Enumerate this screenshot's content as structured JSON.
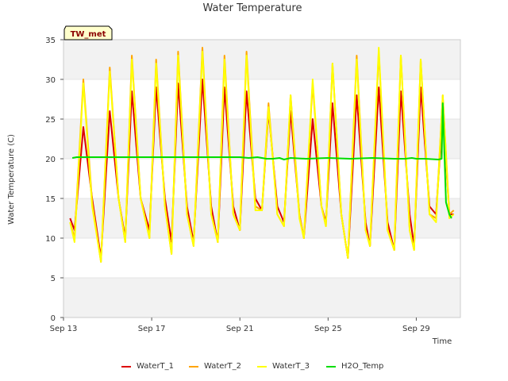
{
  "chart_data": {
    "type": "line",
    "title": "Water Temperature",
    "xlabel": "Time",
    "ylabel": "Water Temperature (C)",
    "station_badge": "TW_met",
    "x_unit": "date (Sep 13 to Sep 30, daily samples)",
    "x_ticks": [
      "Sep 13",
      "Sep 17",
      "Sep 21",
      "Sep 25",
      "Sep 29"
    ],
    "x_tick_values": [
      13,
      17,
      21,
      25,
      29
    ],
    "xlim": [
      13,
      31
    ],
    "y_ticks": [
      0,
      5,
      10,
      15,
      20,
      25,
      30,
      35
    ],
    "ylim": [
      0,
      35
    ],
    "grid": "horizontal bands",
    "legend_position": "bottom",
    "series": [
      {
        "name": "WaterT_1",
        "color": "#dd0000",
        "points": [
          [
            13.3,
            12.5
          ],
          [
            13.5,
            11
          ],
          [
            13.9,
            24
          ],
          [
            14.3,
            15
          ],
          [
            14.7,
            7.5
          ],
          [
            15.1,
            26
          ],
          [
            15.5,
            15
          ],
          [
            15.8,
            10
          ],
          [
            16.1,
            28.5
          ],
          [
            16.5,
            15
          ],
          [
            16.9,
            11
          ],
          [
            17.2,
            29
          ],
          [
            17.6,
            15
          ],
          [
            17.9,
            9.5
          ],
          [
            18.2,
            29.5
          ],
          [
            18.6,
            14
          ],
          [
            18.9,
            9.5
          ],
          [
            19.3,
            30
          ],
          [
            19.7,
            14
          ],
          [
            20.0,
            9.5
          ],
          [
            20.3,
            29
          ],
          [
            20.7,
            14
          ],
          [
            21.0,
            11
          ],
          [
            21.3,
            28.5
          ],
          [
            21.7,
            15
          ],
          [
            22.0,
            13.5
          ],
          [
            22.3,
            26
          ],
          [
            22.7,
            14
          ],
          [
            23.0,
            12
          ],
          [
            23.3,
            26
          ],
          [
            23.7,
            13
          ],
          [
            23.9,
            10
          ],
          [
            24.3,
            25
          ],
          [
            24.7,
            14
          ],
          [
            24.9,
            12
          ],
          [
            25.2,
            27
          ],
          [
            25.6,
            13
          ],
          [
            25.9,
            7.5
          ],
          [
            26.3,
            28
          ],
          [
            26.7,
            12
          ],
          [
            26.9,
            9
          ],
          [
            27.3,
            29
          ],
          [
            27.7,
            12
          ],
          [
            28.0,
            8.5
          ],
          [
            28.3,
            28.5
          ],
          [
            28.7,
            13
          ],
          [
            28.9,
            9
          ],
          [
            29.2,
            29
          ],
          [
            29.6,
            14
          ],
          [
            29.9,
            13
          ],
          [
            30.2,
            26
          ],
          [
            30.5,
            13
          ],
          [
            30.7,
            13
          ]
        ]
      },
      {
        "name": "WaterT_2",
        "color": "#ffa500",
        "points": [
          [
            13.3,
            12
          ],
          [
            13.5,
            10
          ],
          [
            13.9,
            30
          ],
          [
            14.3,
            14.5
          ],
          [
            14.7,
            7
          ],
          [
            15.1,
            31.5
          ],
          [
            15.5,
            15
          ],
          [
            15.8,
            9.5
          ],
          [
            16.1,
            33
          ],
          [
            16.5,
            15
          ],
          [
            16.9,
            10
          ],
          [
            17.2,
            32.5
          ],
          [
            17.6,
            14
          ],
          [
            17.9,
            8
          ],
          [
            18.2,
            33.5
          ],
          [
            18.6,
            13
          ],
          [
            18.9,
            9
          ],
          [
            19.3,
            34
          ],
          [
            19.7,
            13
          ],
          [
            20.0,
            9.5
          ],
          [
            20.3,
            33
          ],
          [
            20.7,
            13
          ],
          [
            21.0,
            11
          ],
          [
            21.3,
            33.5
          ],
          [
            21.7,
            14
          ],
          [
            22.0,
            13.5
          ],
          [
            22.3,
            27
          ],
          [
            22.7,
            13
          ],
          [
            23.0,
            11.5
          ],
          [
            23.3,
            28
          ],
          [
            23.7,
            13
          ],
          [
            23.9,
            10
          ],
          [
            24.3,
            29.5
          ],
          [
            24.7,
            14
          ],
          [
            24.9,
            11.5
          ],
          [
            25.2,
            32
          ],
          [
            25.6,
            13
          ],
          [
            25.9,
            7.5
          ],
          [
            26.3,
            33
          ],
          [
            26.7,
            11
          ],
          [
            26.9,
            9
          ],
          [
            27.3,
            33.5
          ],
          [
            27.7,
            11
          ],
          [
            28.0,
            8.5
          ],
          [
            28.3,
            33
          ],
          [
            28.7,
            11
          ],
          [
            28.9,
            8.5
          ],
          [
            29.2,
            32.5
          ],
          [
            29.6,
            13
          ],
          [
            29.9,
            12.5
          ],
          [
            30.2,
            28
          ],
          [
            30.5,
            13
          ],
          [
            30.7,
            13.5
          ]
        ]
      },
      {
        "name": "WaterT_3",
        "color": "#ffff00",
        "points": [
          [
            13.3,
            12
          ],
          [
            13.5,
            9.5
          ],
          [
            13.9,
            29.5
          ],
          [
            14.3,
            14
          ],
          [
            14.7,
            7
          ],
          [
            15.1,
            31
          ],
          [
            15.5,
            15
          ],
          [
            15.8,
            9.5
          ],
          [
            16.1,
            32.5
          ],
          [
            16.5,
            15
          ],
          [
            16.9,
            10
          ],
          [
            17.2,
            32
          ],
          [
            17.6,
            14
          ],
          [
            17.9,
            8
          ],
          [
            18.2,
            33
          ],
          [
            18.6,
            13
          ],
          [
            18.9,
            9
          ],
          [
            19.3,
            33.5
          ],
          [
            19.7,
            13
          ],
          [
            20.0,
            9.5
          ],
          [
            20.3,
            32.5
          ],
          [
            20.7,
            13
          ],
          [
            21.0,
            11
          ],
          [
            21.3,
            33
          ],
          [
            21.7,
            13.5
          ],
          [
            22.0,
            13.5
          ],
          [
            22.3,
            26.5
          ],
          [
            22.7,
            13
          ],
          [
            23.0,
            11.5
          ],
          [
            23.3,
            28
          ],
          [
            23.7,
            12.5
          ],
          [
            23.9,
            10
          ],
          [
            24.3,
            30
          ],
          [
            24.7,
            14
          ],
          [
            24.9,
            11.5
          ],
          [
            25.2,
            32
          ],
          [
            25.6,
            13
          ],
          [
            25.9,
            7.5
          ],
          [
            26.3,
            32.5
          ],
          [
            26.7,
            11
          ],
          [
            26.9,
            9
          ],
          [
            27.3,
            34
          ],
          [
            27.7,
            11
          ],
          [
            28.0,
            8.5
          ],
          [
            28.3,
            33
          ],
          [
            28.7,
            11
          ],
          [
            28.9,
            8.5
          ],
          [
            29.2,
            32.5
          ],
          [
            29.6,
            13
          ],
          [
            29.9,
            12
          ],
          [
            30.2,
            28
          ],
          [
            30.5,
            12.5
          ],
          [
            30.7,
            13
          ]
        ]
      },
      {
        "name": "H2O_Temp",
        "color": "#00dd00",
        "points": [
          [
            13.4,
            20.1
          ],
          [
            13.6,
            20.2
          ],
          [
            16,
            20.2
          ],
          [
            19,
            20.2
          ],
          [
            21,
            20.2
          ],
          [
            21.4,
            20.1
          ],
          [
            21.8,
            20.2
          ],
          [
            22.2,
            20
          ],
          [
            22.5,
            20
          ],
          [
            22.8,
            20.1
          ],
          [
            23.0,
            19.9
          ],
          [
            23.3,
            20.1
          ],
          [
            24.0,
            20
          ],
          [
            25.0,
            20.1
          ],
          [
            26,
            20
          ],
          [
            27,
            20.1
          ],
          [
            28.0,
            20
          ],
          [
            28.5,
            20
          ],
          [
            28.8,
            20.1
          ],
          [
            29.0,
            20
          ],
          [
            29.4,
            20
          ],
          [
            30.0,
            19.9
          ],
          [
            30.15,
            20
          ],
          [
            30.2,
            27
          ],
          [
            30.35,
            14.5
          ],
          [
            30.5,
            13
          ],
          [
            30.6,
            12.5
          ]
        ]
      }
    ]
  }
}
